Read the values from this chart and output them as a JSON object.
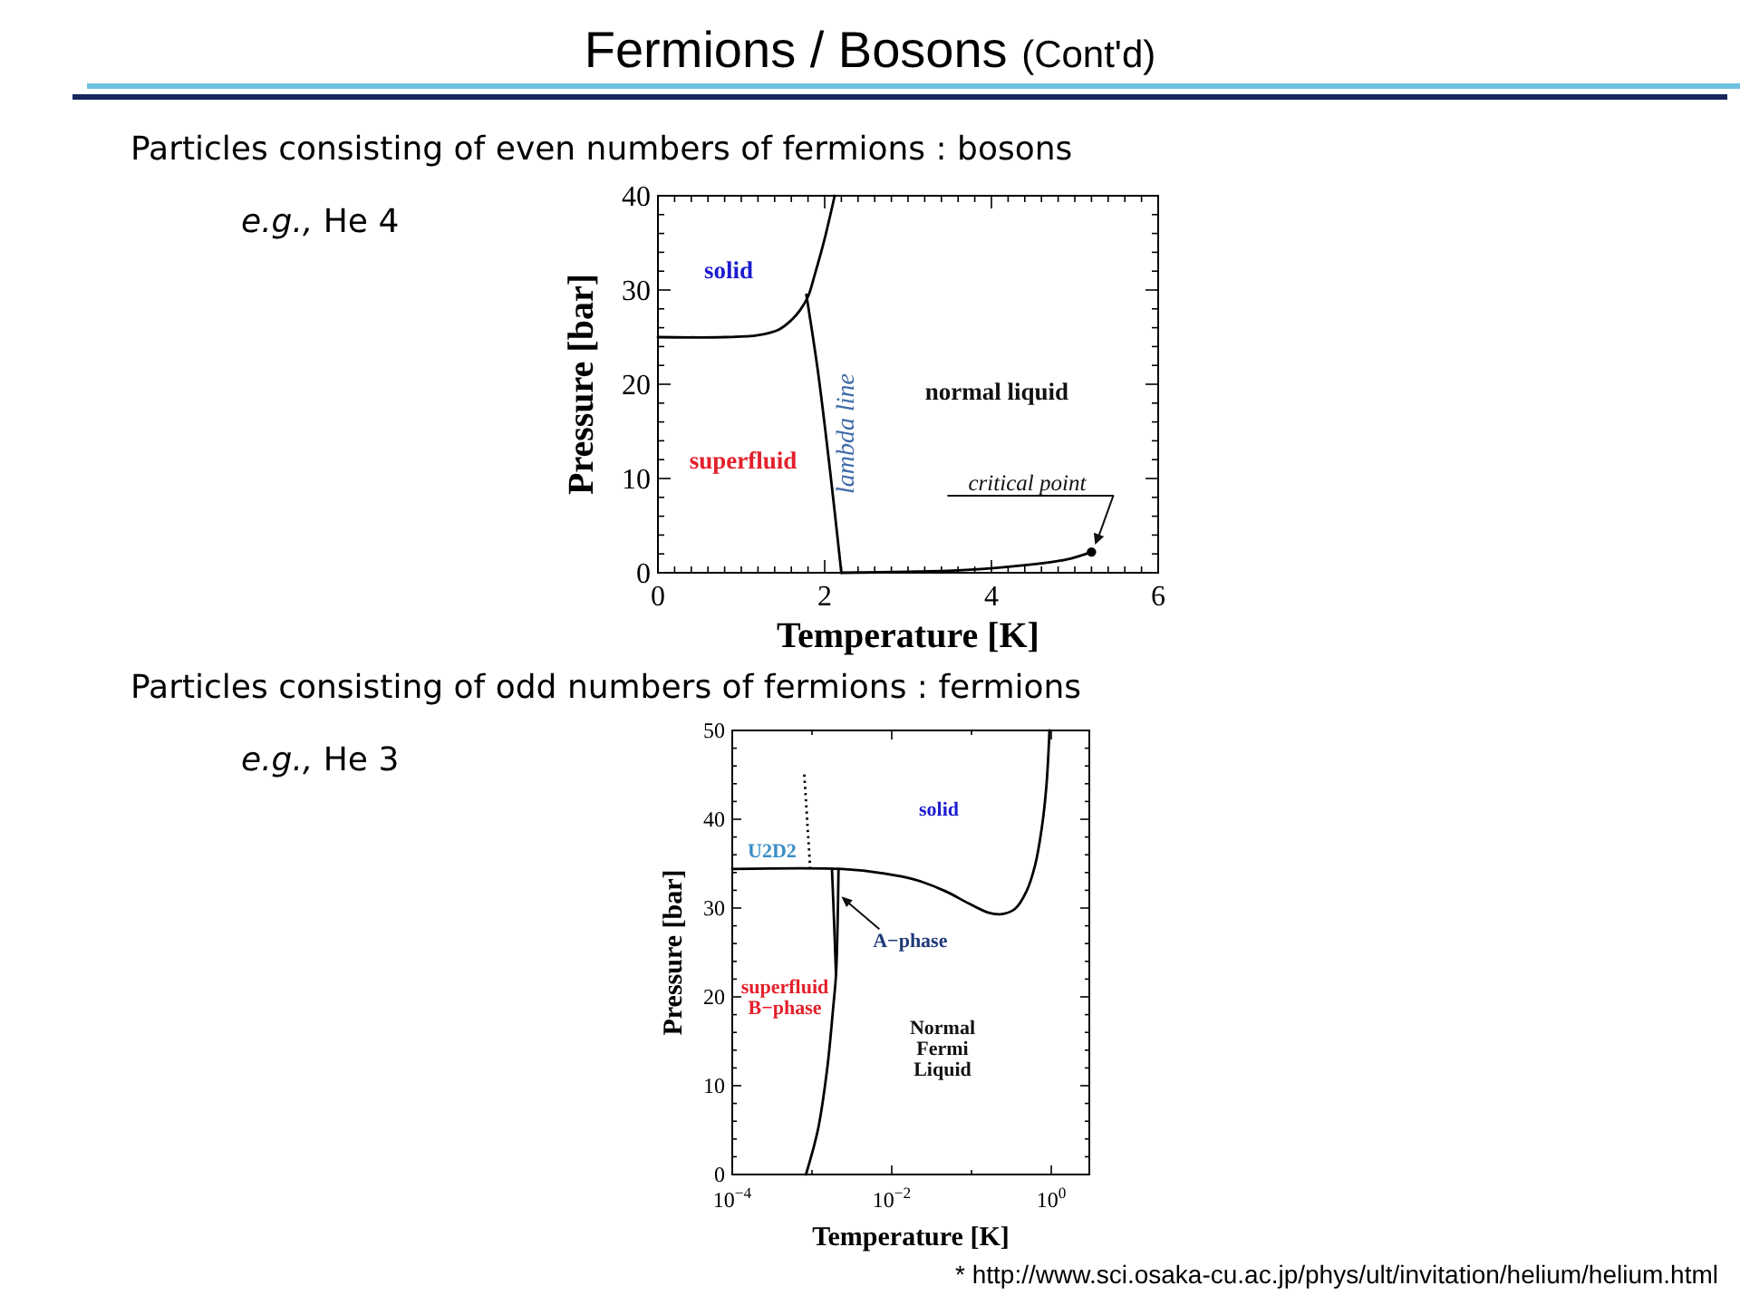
{
  "chart_data": [
    {
      "type": "line",
      "title": "Fermions / Bosons (Cont'd)",
      "subtitle": "Particles consisting of even numbers of fermions : bosons",
      "xlabel": "Temperature [K]",
      "ylabel": "Pressure [bar]",
      "xlim": [
        0,
        6
      ],
      "ylim": [
        0,
        40
      ],
      "xticks": [
        0,
        {
          "value": 0.2,
          "label": null
        },
        {
          "value": 0.4,
          "label": null
        },
        {
          "value": 0.6,
          "label": null
        },
        {
          "value": 0.8,
          "label": null
        },
        {
          "value": 1,
          "label": null
        },
        {
          "value": 1.2,
          "label": null
        },
        {
          "value": 1.4,
          "label": null
        },
        {
          "value": 1.6,
          "label": null
        },
        {
          "value": 1.8,
          "label": null
        },
        2,
        {
          "value": 2.2,
          "label": null
        },
        {
          "value": 2.4,
          "label": null
        },
        {
          "value": 2.6,
          "label": null
        },
        {
          "value": 2.8,
          "label": null
        },
        {
          "value": 3,
          "label": null
        },
        {
          "value": 3.2,
          "label": null
        },
        {
          "value": 3.4,
          "label": null
        },
        {
          "value": 3.6,
          "label": null
        },
        {
          "value": 3.8,
          "label": null
        },
        4,
        {
          "value": 4.2,
          "label": null
        },
        {
          "value": 4.4,
          "label": null
        },
        {
          "value": 4.6,
          "label": null
        },
        {
          "value": 4.8,
          "label": null
        },
        {
          "value": 5,
          "label": null
        },
        {
          "value": 5.2,
          "label": null
        },
        {
          "value": 5.4,
          "label": null
        },
        {
          "value": 5.6,
          "label": null
        },
        {
          "value": 5.8,
          "label": null
        },
        6
      ],
      "yticks": [
        0,
        {
          "value": 2,
          "label": null
        },
        {
          "value": 4,
          "label": null
        },
        {
          "value": 6,
          "label": null
        },
        {
          "value": 8,
          "label": null
        },
        10,
        {
          "value": 12,
          "label": null
        },
        {
          "value": 14,
          "label": null
        },
        {
          "value": 16,
          "label": null
        },
        {
          "value": 18,
          "label": null
        },
        20,
        {
          "value": 22,
          "label": null
        },
        {
          "value": 24,
          "label": null
        },
        {
          "value": 26,
          "label": null
        },
        {
          "value": 28,
          "label": null
        },
        30,
        {
          "value": 32,
          "label": null
        },
        {
          "value": 34,
          "label": null
        },
        {
          "value": 36,
          "label": null
        },
        {
          "value": 38,
          "label": null
        },
        40
      ],
      "series": [
        {
          "color": "#000000",
          "x": [
            0,
            0.8,
            1.2,
            1.45,
            1.6,
            1.7,
            1.8,
            1.88,
            1.99,
            2.12
          ],
          "values": [
            25,
            25,
            25.2,
            25.8,
            26.8,
            27.8,
            29.3,
            31.6,
            35.1,
            40
          ]
        },
        {
          "name": "lambda line",
          "color": "#000000",
          "x": [
            1.78,
            1.92,
            2.07,
            2.2
          ],
          "values": [
            29.5,
            21.3,
            10.4,
            0
          ]
        },
        {
          "color": "#000000",
          "x": [
            2.2,
            3,
            3.7,
            4.4,
            4.9,
            5.2
          ],
          "values": [
            0,
            0.1,
            0.3,
            0.8,
            1.4,
            2.2
          ]
        },
        {
          "type": "scatter",
          "color": "#000000",
          "x": [
            5.2
          ],
          "values": [
            2.2
          ]
        }
      ],
      "annotations": [
        "e.g., He 4",
        "solid",
        "superfluid",
        "normal liquid",
        {
          "text": "critical point",
          "x": 5.2,
          "y": 2.2
        }
      ]
    },
    {
      "type": "line",
      "subtitle": "Particles consisting of odd numbers of fermions : fermions",
      "xlabel": "Temperature [K]",
      "ylabel": "Pressure [bar]",
      "log": "x",
      "xlim": [
        0.0001,
        3
      ],
      "ylim": [
        0,
        50
      ],
      "xticks": [
        {
          "value": 0.0001,
          "label": "10$^{−4}$"
        },
        {
          "value": 0.001,
          "label": null
        },
        {
          "value": 0.01,
          "label": "10$^{−2}$"
        },
        {
          "value": 0.1,
          "label": null
        },
        {
          "value": 1,
          "label": "10$^{0}$"
        }
      ],
      "yticks": [
        0,
        {
          "value": 2,
          "label": null
        },
        {
          "value": 4,
          "label": null
        },
        {
          "value": 6,
          "label": null
        },
        {
          "value": 8,
          "label": null
        },
        10,
        {
          "value": 12,
          "label": null
        },
        {
          "value": 14,
          "label": null
        },
        {
          "value": 16,
          "label": null
        },
        {
          "value": 18,
          "label": null
        },
        20,
        {
          "value": 22,
          "label": null
        },
        {
          "value": 24,
          "label": null
        },
        {
          "value": 26,
          "label": null
        },
        {
          "value": 28,
          "label": null
        },
        30,
        {
          "value": 32,
          "label": null
        },
        {
          "value": 34,
          "label": null
        },
        {
          "value": 36,
          "label": null
        },
        {
          "value": 38,
          "label": null
        },
        40,
        {
          "value": 42,
          "label": null
        },
        {
          "value": 44,
          "label": null
        },
        {
          "value": 46,
          "label": null
        },
        {
          "value": 48,
          "label": null
        },
        50
      ],
      "series": [
        {
          "color": "#000000",
          "x": [
            0.0001,
            0.0024,
            0.0081,
            0.0195,
            0.047,
            0.093,
            0.16,
            0.23,
            0.35,
            0.49,
            0.63,
            0.76,
            0.87,
            0.95
          ],
          "values": [
            34.4,
            34.4,
            33.9,
            33.2,
            31.9,
            30.5,
            29.5,
            29.3,
            29.9,
            31.9,
            34.9,
            39,
            43.8,
            50
          ]
        },
        {
          "color": "#000000",
          "x": [
            0.00084,
            0.00119,
            0.00155,
            0.00184,
            0.002,
            0.0021,
            0.00215
          ],
          "values": [
            0,
            5.1,
            11.9,
            18.7,
            22.5,
            28.8,
            34.4
          ]
        },
        {
          "color": "#000000",
          "x": [
            0.002,
            0.0019,
            0.00178
          ],
          "values": [
            22.5,
            28,
            34.4
          ]
        },
        {
          "color": "#000000",
          "line_style": "dotted",
          "x": [
            0.00095,
            0.0008
          ],
          "values": [
            34.4,
            45.1
          ]
        }
      ],
      "annotations": [
        "e.g., He 3",
        "U2D2",
        "solid",
        {
          "text": "A−phase",
          "x": 0.0021,
          "y": 31.5
        },
        "superfluid\nB−phase",
        "Normal\nFermi\nLiquid",
        "* http://www.sci.osaka-cu.ac.jp/phys/ult/invitation/helium/helium.html"
      ]
    }
  ]
}
